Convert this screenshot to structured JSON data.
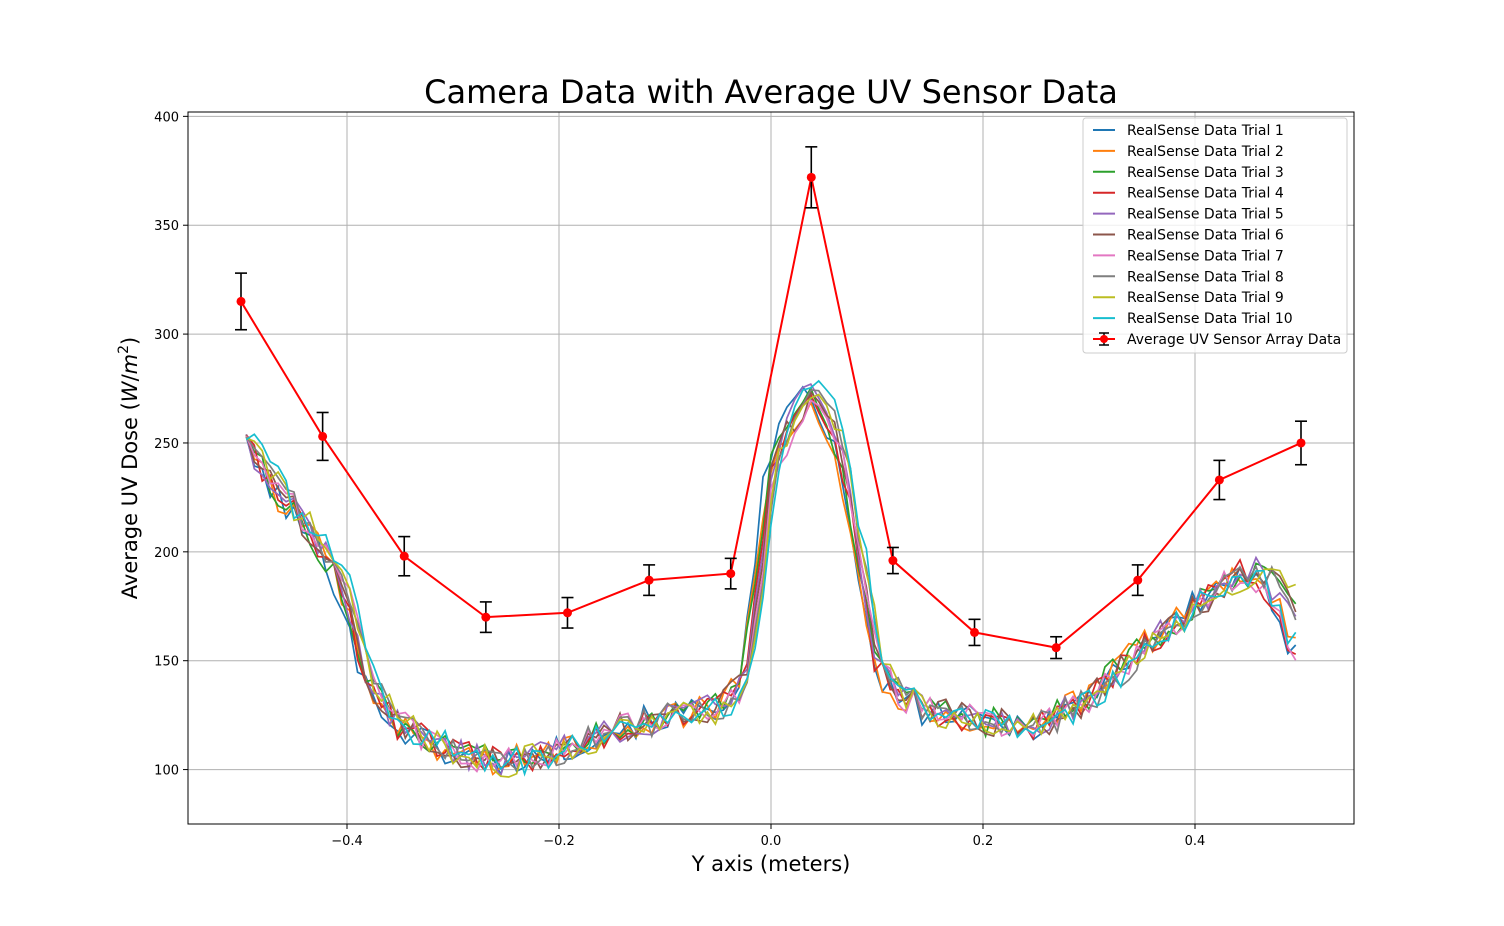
{
  "chart_data": {
    "type": "line",
    "title": "Camera Data with Average UV Sensor Data",
    "xlabel": "Y axis (meters)",
    "ylabel": "Average UV Dose (W/m²)",
    "ylabel_parts": {
      "main": "Average UV Dose (",
      "var": "W",
      "slash": "/",
      "m": "m",
      "sup": "2",
      "close": ")"
    },
    "xlim": [
      -0.55,
      0.55
    ],
    "ylim": [
      75,
      402
    ],
    "xticks": [
      -0.4,
      -0.2,
      0.0,
      0.2,
      0.4
    ],
    "xtick_labels": [
      "−0.4",
      "−0.2",
      "0.0",
      "0.2",
      "0.4"
    ],
    "yticks": [
      100,
      150,
      200,
      250,
      300,
      350,
      400
    ],
    "ytick_labels": [
      "100",
      "150",
      "200",
      "250",
      "300",
      "350",
      "400"
    ],
    "grid": true,
    "legend_position": "top-right",
    "series": [
      {
        "name": "RealSense Data Trial 1",
        "color": "#1f77b4"
      },
      {
        "name": "RealSense Data Trial 2",
        "color": "#ff7f0e"
      },
      {
        "name": "RealSense Data Trial 3",
        "color": "#2ca02c"
      },
      {
        "name": "RealSense Data Trial 4",
        "color": "#d62728"
      },
      {
        "name": "RealSense Data Trial 5",
        "color": "#9467bd"
      },
      {
        "name": "RealSense Data Trial 6",
        "color": "#8c564b"
      },
      {
        "name": "RealSense Data Trial 7",
        "color": "#e377c2"
      },
      {
        "name": "RealSense Data Trial 8",
        "color": "#7f7f7f"
      },
      {
        "name": "RealSense Data Trial 9",
        "color": "#bcbd22"
      },
      {
        "name": "RealSense Data Trial 10",
        "color": "#17becf"
      }
    ],
    "camera_profile": {
      "x": [
        -0.495,
        -0.46,
        -0.42,
        -0.4,
        -0.38,
        -0.35,
        -0.3,
        -0.25,
        -0.2,
        -0.15,
        -0.1,
        -0.05,
        -0.035,
        -0.025,
        -0.01,
        0.0,
        0.02,
        0.04,
        0.06,
        0.075,
        0.09,
        0.1,
        0.12,
        0.15,
        0.2,
        0.25,
        0.3,
        0.35,
        0.4,
        0.45,
        0.47,
        0.495
      ],
      "y": [
        250,
        225,
        200,
        180,
        140,
        120,
        108,
        103,
        108,
        118,
        124,
        128,
        135,
        140,
        190,
        238,
        262,
        275,
        258,
        225,
        180,
        150,
        133,
        127,
        122,
        120,
        132,
        155,
        175,
        192,
        185,
        165
      ]
    },
    "uv_sensor": {
      "name": "Average UV Sensor Array Data",
      "color": "#ff0000",
      "errorbar_color": "#000000",
      "x": [
        -0.5,
        -0.423,
        -0.346,
        -0.269,
        -0.192,
        -0.115,
        -0.038,
        0.038,
        0.115,
        0.192,
        0.269,
        0.346,
        0.423,
        0.5
      ],
      "y": [
        315,
        253,
        198,
        170,
        172,
        187,
        190,
        372,
        196,
        163,
        156,
        187,
        233,
        250
      ],
      "err": [
        13,
        11,
        9,
        7,
        7,
        7,
        7,
        14,
        6,
        6,
        5,
        7,
        9,
        10
      ]
    }
  }
}
